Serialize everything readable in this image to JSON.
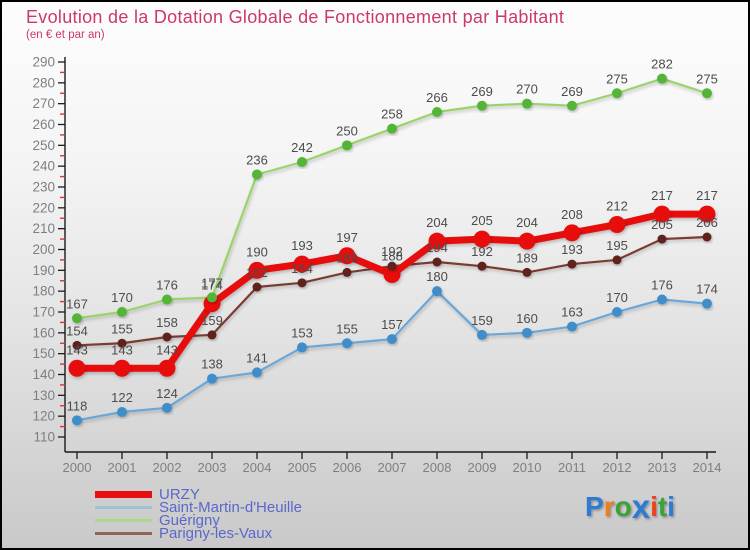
{
  "title": "Evolution de la Dotation Globale de Fonctionnement par Habitant",
  "subtitle": "(en € et par an)",
  "colors": {
    "title": "#cb3a64",
    "legend_text": "#5b68c9",
    "axis_line": "#1a1a1a",
    "axis_label": "#7f7f7f",
    "data_label": "#4c4c4c",
    "minor_tick": "#d93636",
    "urzy_red": "#e70f0f",
    "saint_martin_blue": "#3f8ec9",
    "guerigny_green": "#53b437",
    "parigny_brown": "#5e231d"
  },
  "chart_data": {
    "type": "line",
    "title": "Evolution de la Dotation Globale de Fonctionnement par Habitant",
    "subtitle": "(en € et par an)",
    "x": [
      2000,
      2001,
      2002,
      2003,
      2004,
      2005,
      2006,
      2007,
      2008,
      2009,
      2010,
      2011,
      2012,
      2013,
      2014
    ],
    "ylim": [
      110,
      290
    ],
    "ytick_step": 10,
    "grid": false,
    "legend_position": "bottom-left",
    "series": [
      {
        "name": "URZY",
        "values": [
          143,
          143,
          143,
          174,
          190,
          193,
          197,
          188,
          204,
          205,
          204,
          208,
          212,
          217,
          217
        ],
        "color": "#e70f0f",
        "line_color": "#e70f0f",
        "legend_color": "#e70f0f",
        "thick": true
      },
      {
        "name": "Saint-Martin-d'Heuille",
        "values": [
          118,
          122,
          124,
          138,
          141,
          153,
          155,
          157,
          180,
          159,
          160,
          163,
          170,
          176,
          174
        ],
        "color": "#3f8ec9",
        "line_color": "#6aa7d8",
        "legend_color": "#9fc2d6",
        "thick": false
      },
      {
        "name": "Guérigny",
        "values": [
          167,
          170,
          176,
          177,
          236,
          242,
          250,
          258,
          266,
          269,
          270,
          269,
          275,
          282,
          275
        ],
        "color": "#53b437",
        "line_color": "#9ad36a",
        "legend_color": "#aed690",
        "thick": false
      },
      {
        "name": "Parigny-les-Vaux",
        "values": [
          154,
          155,
          158,
          159,
          182,
          184,
          189,
          192,
          194,
          192,
          189,
          193,
          195,
          205,
          206
        ],
        "color": "#5e231d",
        "line_color": "#7a3a30",
        "legend_color": "#93635a",
        "thick": false
      }
    ]
  },
  "logo": {
    "text": "Proxiti",
    "letters": [
      {
        "ch": "P",
        "color": "#2e7bd6"
      },
      {
        "ch": "r",
        "color": "#f07d18"
      },
      {
        "ch": "o",
        "color": "#3aa336"
      },
      {
        "ch": "x",
        "color": "#2e7bd6"
      },
      {
        "ch": "i",
        "color": "#e8451c"
      },
      {
        "ch": "t",
        "color": "#3aa336"
      },
      {
        "ch": "i",
        "color": "#2e7bd6"
      }
    ]
  }
}
